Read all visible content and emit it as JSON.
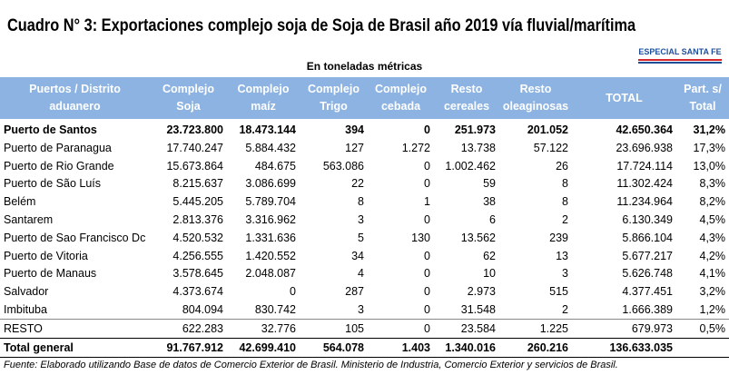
{
  "header": {
    "title": "Cuadro N° 3: Exportaciones complejo soja de Soja de Brasil año 2019 vía fluvial/marítima",
    "badge": "ESPECIAL SANTA FE",
    "subtitle": "En toneladas métricas"
  },
  "table": {
    "columns": [
      [
        "Puertos / Distrito",
        "aduanero"
      ],
      [
        "Complejo",
        "Soja"
      ],
      [
        "Complejo",
        "maíz"
      ],
      [
        "Complejo",
        "Trigo"
      ],
      [
        "Complejo",
        "cebada"
      ],
      [
        "Resto",
        "cereales"
      ],
      [
        "Resto",
        "oleaginosas"
      ],
      [
        "TOTAL"
      ],
      [
        "Part. s/",
        "Total"
      ]
    ],
    "rows": [
      [
        "Puerto de Santos",
        "23.723.800",
        "18.473.144",
        "394",
        "0",
        "251.973",
        "201.052",
        "42.650.364",
        "31,2%"
      ],
      [
        "Puerto de Paranagua",
        "17.740.247",
        "5.884.432",
        "127",
        "1.272",
        "13.738",
        "57.122",
        "23.696.938",
        "17,3%"
      ],
      [
        "Puerto de Rio Grande",
        "15.673.864",
        "484.675",
        "563.086",
        "0",
        "1.002.462",
        "26",
        "17.724.114",
        "13,0%"
      ],
      [
        "Puerto de São Luís",
        "8.215.637",
        "3.086.699",
        "22",
        "0",
        "59",
        "8",
        "11.302.424",
        "8,3%"
      ],
      [
        "Belém",
        "5.445.205",
        "5.789.704",
        "8",
        "1",
        "38",
        "8",
        "11.234.964",
        "8,2%"
      ],
      [
        "Santarem",
        "2.813.376",
        "3.316.962",
        "3",
        "0",
        "6",
        "2",
        "6.130.349",
        "4,5%"
      ],
      [
        "Puerto de Sao Francisco Dc",
        "4.520.532",
        "1.331.636",
        "5",
        "130",
        "13.562",
        "239",
        "5.866.104",
        "4,3%"
      ],
      [
        "Puerto de Vitoria",
        "4.256.555",
        "1.420.552",
        "34",
        "0",
        "62",
        "13",
        "5.677.217",
        "4,2%"
      ],
      [
        "Puerto de Manaus",
        "3.578.645",
        "2.048.087",
        "4",
        "0",
        "10",
        "3",
        "5.626.748",
        "4,1%"
      ],
      [
        "Salvador",
        "4.373.674",
        "0",
        "287",
        "0",
        "2.973",
        "515",
        "4.377.451",
        "3,2%"
      ],
      [
        "Imbituba",
        "804.094",
        "830.742",
        "3",
        "0",
        "31.548",
        "2",
        "1.666.389",
        "1,2%"
      ],
      [
        "RESTO",
        "622.283",
        "32.776",
        "105",
        "0",
        "23.584",
        "1.225",
        "679.973",
        "0,5%"
      ]
    ],
    "total": [
      "Total general",
      "91.767.912",
      "42.699.410",
      "564.078",
      "1.403",
      "1.340.016",
      "260.216",
      "136.633.035"
    ]
  },
  "footer": "Fuente: Elaborado utilizando Base de datos de Comercio Exterior de Brasil. Ministerio de Industria, Comercio Exterior y servicios de Brasil."
}
